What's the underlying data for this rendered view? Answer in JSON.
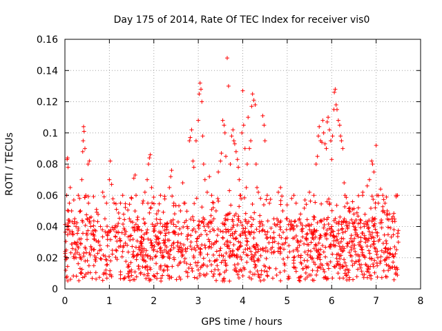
{
  "chart_data": {
    "type": "scatter",
    "title": "Day 175 of 2014, Rate Of TEC Index for receiver vis0",
    "xlabel": "GPS time / hours",
    "ylabel": "ROTI / TECUs",
    "xlim": [
      0,
      8
    ],
    "ylim": [
      0,
      0.16
    ],
    "xticks": [
      0,
      1,
      2,
      3,
      4,
      5,
      6,
      7,
      8
    ],
    "xtick_labels": [
      "0",
      "1",
      "2",
      "3",
      "4",
      "5",
      "6",
      "7",
      "8"
    ],
    "yticks": [
      0,
      0.02,
      0.04,
      0.06,
      0.08,
      0.1,
      0.12,
      0.14,
      0.16
    ],
    "ytick_labels": [
      "0",
      "0.02",
      "0.04",
      "0.06",
      "0.08",
      "0.1",
      "0.12",
      "0.14",
      "0.16"
    ],
    "grid": true,
    "marker": "+",
    "marker_color": "#ff0000",
    "series": [
      {
        "name": "ROTI",
        "points": [
          [
            0.02,
            0.012
          ],
          [
            0.03,
            0.025
          ],
          [
            0.04,
            0.06
          ],
          [
            0.05,
            0.083
          ],
          [
            0.06,
            0.084
          ],
          [
            0.07,
            0.078
          ],
          [
            0.08,
            0.04
          ],
          [
            0.1,
            0.055
          ],
          [
            0.12,
            0.065
          ],
          [
            0.15,
            0.05
          ],
          [
            0.18,
            0.035
          ],
          [
            0.2,
            0.057
          ],
          [
            0.22,
            0.045
          ],
          [
            0.25,
            0.02
          ],
          [
            0.28,
            0.03
          ],
          [
            0.3,
            0.06
          ],
          [
            0.33,
            0.058
          ],
          [
            0.35,
            0.05
          ],
          [
            0.38,
            0.07
          ],
          [
            0.4,
            0.088
          ],
          [
            0.41,
            0.095
          ],
          [
            0.42,
            0.104
          ],
          [
            0.43,
            0.101
          ],
          [
            0.45,
            0.09
          ],
          [
            0.47,
            0.06
          ],
          [
            0.5,
            0.045
          ],
          [
            0.52,
            0.08
          ],
          [
            0.55,
            0.082
          ],
          [
            0.58,
            0.04
          ],
          [
            0.6,
            0.025
          ],
          [
            0.65,
            0.015
          ],
          [
            0.7,
            0.02
          ],
          [
            0.75,
            0.03
          ],
          [
            0.8,
            0.04
          ],
          [
            0.85,
            0.062
          ],
          [
            0.9,
            0.045
          ],
          [
            0.95,
            0.035
          ],
          [
            1.0,
            0.07
          ],
          [
            1.02,
            0.082
          ],
          [
            1.05,
            0.067
          ],
          [
            1.1,
            0.038
          ],
          [
            1.15,
            0.025
          ],
          [
            1.2,
            0.042
          ],
          [
            1.25,
            0.055
          ],
          [
            1.3,
            0.06
          ],
          [
            1.35,
            0.035
          ],
          [
            1.4,
            0.028
          ],
          [
            1.45,
            0.045
          ],
          [
            1.5,
            0.058
          ],
          [
            1.55,
            0.071
          ],
          [
            1.58,
            0.073
          ],
          [
            1.6,
            0.06
          ],
          [
            1.65,
            0.04
          ],
          [
            1.7,
            0.03
          ],
          [
            1.75,
            0.055
          ],
          [
            1.8,
            0.062
          ],
          [
            1.85,
            0.07
          ],
          [
            1.88,
            0.08
          ],
          [
            1.9,
            0.084
          ],
          [
            1.92,
            0.086
          ],
          [
            1.95,
            0.065
          ],
          [
            2.0,
            0.04
          ],
          [
            2.05,
            0.03
          ],
          [
            2.1,
            0.05
          ],
          [
            2.15,
            0.06
          ],
          [
            2.2,
            0.04
          ],
          [
            2.25,
            0.025
          ],
          [
            2.3,
            0.042
          ],
          [
            2.35,
            0.065
          ],
          [
            2.38,
            0.072
          ],
          [
            2.4,
            0.076
          ],
          [
            2.45,
            0.055
          ],
          [
            2.5,
            0.04
          ],
          [
            2.55,
            0.035
          ],
          [
            2.6,
            0.05
          ],
          [
            2.65,
            0.068
          ],
          [
            2.7,
            0.055
          ],
          [
            2.75,
            0.04
          ],
          [
            2.8,
            0.095
          ],
          [
            2.82,
            0.097
          ],
          [
            2.85,
            0.102
          ],
          [
            2.88,
            0.082
          ],
          [
            2.9,
            0.078
          ],
          [
            2.95,
            0.095
          ],
          [
            3.0,
            0.108
          ],
          [
            3.02,
            0.125
          ],
          [
            3.04,
            0.132
          ],
          [
            3.06,
            0.128
          ],
          [
            3.08,
            0.12
          ],
          [
            3.1,
            0.098
          ],
          [
            3.12,
            0.08
          ],
          [
            3.15,
            0.07
          ],
          [
            3.2,
            0.062
          ],
          [
            3.25,
            0.072
          ],
          [
            3.3,
            0.06
          ],
          [
            3.35,
            0.045
          ],
          [
            3.4,
            0.05
          ],
          [
            3.45,
            0.075
          ],
          [
            3.5,
            0.082
          ],
          [
            3.52,
            0.087
          ],
          [
            3.55,
            0.108
          ],
          [
            3.58,
            0.105
          ],
          [
            3.6,
            0.1
          ],
          [
            3.62,
            0.085
          ],
          [
            3.65,
            0.148
          ],
          [
            3.68,
            0.13
          ],
          [
            3.7,
            0.063
          ],
          [
            3.72,
            0.08
          ],
          [
            3.75,
            0.098
          ],
          [
            3.78,
            0.102
          ],
          [
            3.8,
            0.095
          ],
          [
            3.82,
            0.093
          ],
          [
            3.85,
            0.088
          ],
          [
            3.88,
            0.083
          ],
          [
            3.9,
            0.078
          ],
          [
            3.92,
            0.07
          ],
          [
            3.95,
            0.06
          ],
          [
            3.98,
            0.1
          ],
          [
            4.0,
            0.127
          ],
          [
            4.02,
            0.105
          ],
          [
            4.05,
            0.09
          ],
          [
            4.08,
            0.065
          ],
          [
            4.1,
            0.08
          ],
          [
            4.12,
            0.11
          ],
          [
            4.15,
            0.09
          ],
          [
            4.18,
            0.095
          ],
          [
            4.2,
            0.117
          ],
          [
            4.22,
            0.125
          ],
          [
            4.25,
            0.121
          ],
          [
            4.28,
            0.118
          ],
          [
            4.3,
            0.08
          ],
          [
            4.32,
            0.065
          ],
          [
            4.35,
            0.062
          ],
          [
            4.4,
            0.058
          ],
          [
            4.45,
            0.111
          ],
          [
            4.48,
            0.105
          ],
          [
            4.5,
            0.095
          ],
          [
            4.55,
            0.06
          ],
          [
            4.6,
            0.055
          ],
          [
            4.7,
            0.045
          ],
          [
            4.8,
            0.062
          ],
          [
            4.85,
            0.065
          ],
          [
            4.9,
            0.05
          ],
          [
            5.0,
            0.045
          ],
          [
            5.1,
            0.058
          ],
          [
            5.15,
            0.06
          ],
          [
            5.2,
            0.055
          ],
          [
            5.3,
            0.048
          ],
          [
            5.4,
            0.057
          ],
          [
            5.5,
            0.062
          ],
          [
            5.6,
            0.06
          ],
          [
            5.65,
            0.08
          ],
          [
            5.68,
            0.085
          ],
          [
            5.7,
            0.098
          ],
          [
            5.72,
            0.104
          ],
          [
            5.75,
            0.095
          ],
          [
            5.78,
            0.094
          ],
          [
            5.8,
            0.108
          ],
          [
            5.82,
            0.1
          ],
          [
            5.85,
            0.093
          ],
          [
            5.88,
            0.09
          ],
          [
            5.9,
            0.107
          ],
          [
            5.92,
            0.11
          ],
          [
            5.95,
            0.102
          ],
          [
            5.98,
            0.095
          ],
          [
            6.0,
            0.083
          ],
          [
            6.02,
            0.098
          ],
          [
            6.05,
            0.115
          ],
          [
            6.06,
            0.126
          ],
          [
            6.08,
            0.128
          ],
          [
            6.1,
            0.118
          ],
          [
            6.12,
            0.115
          ],
          [
            6.15,
            0.108
          ],
          [
            6.18,
            0.105
          ],
          [
            6.2,
            0.098
          ],
          [
            6.22,
            0.095
          ],
          [
            6.25,
            0.09
          ],
          [
            6.28,
            0.068
          ],
          [
            6.3,
            0.06
          ],
          [
            6.35,
            0.055
          ],
          [
            6.4,
            0.05
          ],
          [
            6.5,
            0.048
          ],
          [
            6.6,
            0.052
          ],
          [
            6.7,
            0.062
          ],
          [
            6.8,
            0.066
          ],
          [
            6.85,
            0.07
          ],
          [
            6.9,
            0.082
          ],
          [
            6.92,
            0.08
          ],
          [
            6.95,
            0.075
          ],
          [
            7.0,
            0.092
          ],
          [
            7.02,
            0.06
          ],
          [
            7.05,
            0.055
          ],
          [
            7.1,
            0.064
          ],
          [
            7.15,
            0.06
          ],
          [
            7.2,
            0.055
          ],
          [
            7.25,
            0.05
          ],
          [
            7.3,
            0.048
          ],
          [
            7.35,
            0.045
          ],
          [
            7.4,
            0.038
          ],
          [
            7.45,
            0.06
          ],
          [
            7.48,
            0.06
          ],
          [
            7.5,
            0.03
          ]
        ],
        "dense_band": {
          "description": "Dense cloud of ROTI samples across the full time range",
          "x_range": [
            0,
            7.5
          ],
          "y_typical_range": [
            0.005,
            0.045
          ],
          "sample_count": 1400
        }
      }
    ]
  }
}
